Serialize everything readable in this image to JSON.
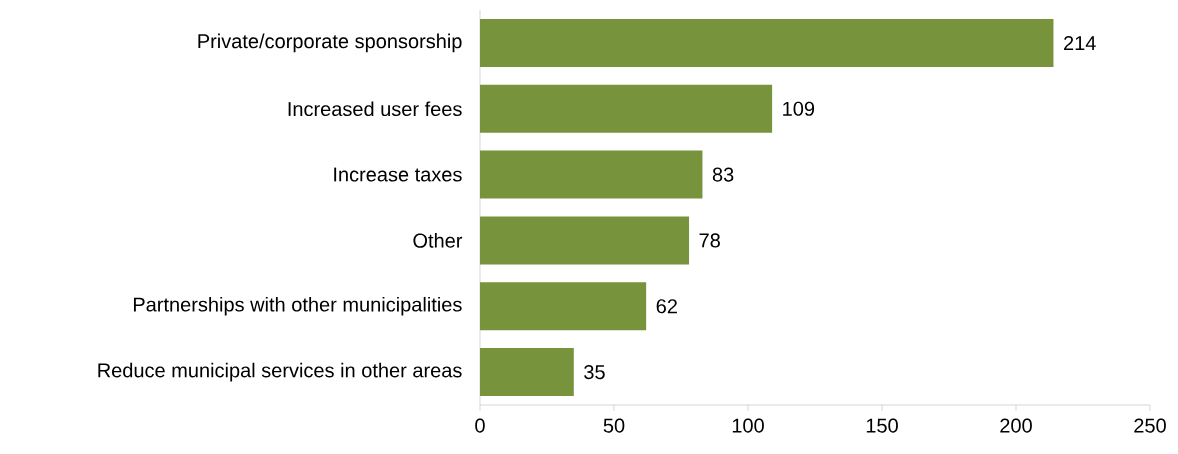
{
  "chart_data": {
    "type": "bar",
    "orientation": "horizontal",
    "categories": [
      "Private/corporate sponsorship",
      "Increased user fees",
      "Increase taxes",
      "Other",
      "Partnerships with other municipalities",
      "Reduce municipal services in other areas"
    ],
    "values": [
      214,
      109,
      83,
      78,
      62,
      35
    ],
    "color": "#77933c",
    "xlim": [
      0,
      250
    ],
    "xticks": [
      0,
      50,
      100,
      150,
      200,
      250
    ],
    "data_labels": true
  }
}
